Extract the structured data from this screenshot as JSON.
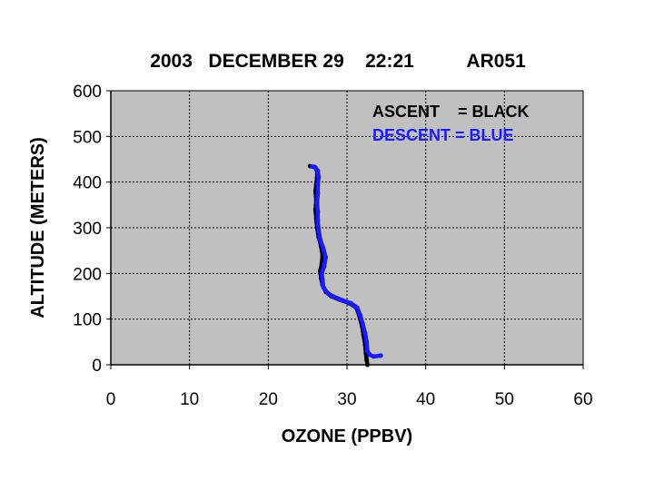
{
  "chart_data": {
    "type": "line",
    "title": "2003   DECEMBER 29    22:21          AR051",
    "xlabel": "OZONE (PPBV)",
    "ylabel": "ALTITUDE (METERS)",
    "xlim": [
      0,
      60
    ],
    "ylim": [
      0,
      600
    ],
    "x_ticks": [
      "0",
      "10",
      "20",
      "30",
      "40",
      "50",
      "60"
    ],
    "y_ticks": [
      "0",
      "100",
      "200",
      "300",
      "400",
      "500",
      "600"
    ],
    "grid": true,
    "legend_position": "top-right",
    "legend": [
      {
        "text": "ASCENT    = BLACK",
        "color": "#000000"
      },
      {
        "text": "DESCENT = BLUE",
        "color": "#1a1aff"
      }
    ],
    "plot_background": "#c0c0c0",
    "series": [
      {
        "color": "#000000",
        "points": [
          [
            32.6,
            0
          ],
          [
            32.5,
            10
          ],
          [
            32.4,
            25
          ],
          [
            32.3,
            45
          ],
          [
            32.1,
            65
          ],
          [
            31.9,
            85
          ],
          [
            31.6,
            105
          ],
          [
            31.2,
            125
          ],
          [
            30.3,
            135
          ],
          [
            29.0,
            143
          ],
          [
            28.0,
            150
          ],
          [
            27.3,
            160
          ],
          [
            26.9,
            175
          ],
          [
            26.7,
            190
          ],
          [
            26.6,
            205
          ],
          [
            26.8,
            222
          ],
          [
            26.9,
            240
          ],
          [
            26.7,
            260
          ],
          [
            26.4,
            280
          ],
          [
            26.2,
            300
          ],
          [
            26.1,
            320
          ],
          [
            26.0,
            340
          ],
          [
            26.1,
            360
          ],
          [
            26.0,
            380
          ],
          [
            26.1,
            395
          ],
          [
            26.2,
            410
          ],
          [
            26.2,
            425
          ],
          [
            25.9,
            433
          ],
          [
            25.3,
            435
          ]
        ]
      },
      {
        "color": "#1a1aff",
        "points": [
          [
            34.3,
            20
          ],
          [
            33.4,
            18
          ],
          [
            32.9,
            22
          ],
          [
            32.6,
            30
          ],
          [
            32.5,
            50
          ],
          [
            32.3,
            70
          ],
          [
            32.0,
            90
          ],
          [
            31.7,
            108
          ],
          [
            31.3,
            125
          ],
          [
            30.5,
            135
          ],
          [
            29.3,
            142
          ],
          [
            28.2,
            150
          ],
          [
            27.5,
            158
          ],
          [
            27.0,
            170
          ],
          [
            26.9,
            185
          ],
          [
            26.8,
            200
          ],
          [
            27.1,
            215
          ],
          [
            27.3,
            235
          ],
          [
            27.0,
            255
          ],
          [
            26.6,
            275
          ],
          [
            26.4,
            295
          ],
          [
            26.3,
            315
          ],
          [
            26.3,
            335
          ],
          [
            26.2,
            355
          ],
          [
            26.3,
            375
          ],
          [
            26.3,
            395
          ],
          [
            26.4,
            410
          ],
          [
            26.3,
            425
          ],
          [
            26.0,
            432
          ],
          [
            25.6,
            434
          ]
        ]
      }
    ]
  }
}
